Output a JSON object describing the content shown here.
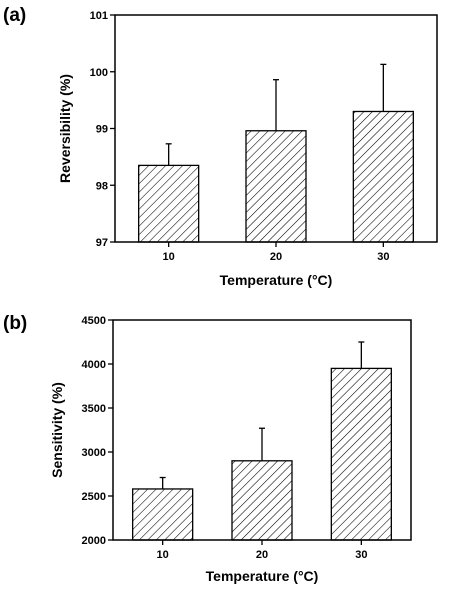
{
  "chart_data": [
    {
      "type": "bar",
      "panel_label": "(a)",
      "categories": [
        "10",
        "20",
        "30"
      ],
      "values": [
        98.35,
        98.96,
        99.3
      ],
      "error_plus": [
        0.38,
        0.9,
        0.83
      ],
      "xlabel": "Temperature (°C)",
      "ylabel": "Reversibility (%)",
      "ylim": [
        97,
        101
      ],
      "yticks": [
        "97",
        "98",
        "99",
        "100",
        "101"
      ],
      "bar_fill": "hatched",
      "grid": false
    },
    {
      "type": "bar",
      "panel_label": "(b)",
      "categories": [
        "10",
        "20",
        "30"
      ],
      "values": [
        2580,
        2900,
        3950
      ],
      "error_plus": [
        130,
        370,
        300
      ],
      "xlabel": "Temperature (°C)",
      "ylabel": "Sensitivity (%)",
      "ylim": [
        2000,
        4500
      ],
      "yticks": [
        "2000",
        "2500",
        "3000",
        "3500",
        "4000",
        "4500"
      ],
      "bar_fill": "hatched",
      "grid": false
    }
  ]
}
